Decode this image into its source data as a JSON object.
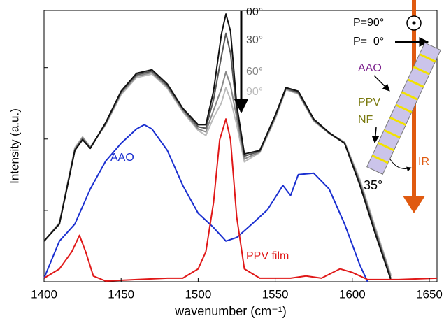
{
  "chart_data": {
    "type": "line",
    "ylabel": "Intensity (a.u.)",
    "xlabel": "wavenumber (cm⁻¹)",
    "xlim": [
      1400,
      1655
    ],
    "xticks": [
      1400,
      1450,
      1500,
      1550,
      1600,
      1650
    ],
    "ylim": [
      0,
      3.8
    ],
    "yticks": [
      1,
      2,
      3
    ],
    "series": [
      {
        "name": "00°",
        "color": "#111111",
        "x": [
          1400,
          1410,
          1420,
          1425,
          1430,
          1440,
          1450,
          1460,
          1470,
          1480,
          1490,
          1500,
          1505,
          1510,
          1515,
          1518,
          1521,
          1525,
          1530,
          1540,
          1550,
          1557,
          1565,
          1575,
          1585,
          1595,
          1605,
          1615,
          1625
        ],
        "values": [
          0.57,
          0.81,
          1.84,
          1.99,
          1.87,
          2.23,
          2.67,
          2.92,
          2.97,
          2.77,
          2.43,
          2.2,
          2.2,
          2.67,
          3.46,
          3.75,
          3.51,
          2.48,
          1.79,
          1.84,
          2.33,
          2.72,
          2.67,
          2.28,
          2.09,
          1.94,
          1.35,
          0.67,
          0.03
        ]
      },
      {
        "name": "30°",
        "color": "#555555",
        "x": [
          1400,
          1410,
          1420,
          1425,
          1430,
          1440,
          1450,
          1460,
          1470,
          1480,
          1490,
          1500,
          1505,
          1510,
          1515,
          1518,
          1521,
          1525,
          1530,
          1540,
          1550,
          1557,
          1565,
          1575,
          1585,
          1595,
          1605,
          1615,
          1625
        ],
        "values": [
          0.57,
          0.81,
          1.85,
          2.0,
          1.87,
          2.22,
          2.66,
          2.9,
          2.95,
          2.75,
          2.42,
          2.17,
          2.15,
          2.55,
          3.15,
          3.48,
          3.2,
          2.4,
          1.76,
          1.83,
          2.32,
          2.71,
          2.65,
          2.27,
          2.08,
          1.94,
          1.37,
          0.7,
          0.05
        ]
      },
      {
        "name": "60°",
        "color": "#888888",
        "x": [
          1400,
          1410,
          1420,
          1425,
          1430,
          1440,
          1450,
          1460,
          1470,
          1480,
          1490,
          1500,
          1505,
          1510,
          1515,
          1518,
          1521,
          1525,
          1530,
          1540,
          1550,
          1557,
          1565,
          1575,
          1585,
          1595,
          1605,
          1615,
          1625
        ],
        "values": [
          0.57,
          0.82,
          1.86,
          2.02,
          1.88,
          2.21,
          2.64,
          2.88,
          2.93,
          2.73,
          2.4,
          2.14,
          2.1,
          2.4,
          2.7,
          2.94,
          2.75,
          2.3,
          1.72,
          1.82,
          2.3,
          2.7,
          2.64,
          2.26,
          2.08,
          1.95,
          1.4,
          0.73,
          0.08
        ]
      },
      {
        "name": "90°",
        "color": "#bbbbbb",
        "x": [
          1400,
          1410,
          1420,
          1425,
          1430,
          1440,
          1450,
          1460,
          1470,
          1480,
          1490,
          1500,
          1505,
          1510,
          1515,
          1518,
          1521,
          1525,
          1530,
          1540,
          1550,
          1557,
          1565,
          1575,
          1585,
          1595,
          1605,
          1615,
          1625
        ],
        "values": [
          0.57,
          0.83,
          1.88,
          2.03,
          1.89,
          2.2,
          2.62,
          2.86,
          2.91,
          2.71,
          2.38,
          2.12,
          2.05,
          2.3,
          2.5,
          2.72,
          2.55,
          2.2,
          1.68,
          1.81,
          2.28,
          2.69,
          2.63,
          2.25,
          2.08,
          1.96,
          1.43,
          0.76,
          0.1
        ]
      },
      {
        "name": "AAO",
        "color": "#1a2fd0",
        "x": [
          1400,
          1410,
          1420,
          1430,
          1440,
          1450,
          1460,
          1465,
          1470,
          1480,
          1490,
          1500,
          1510,
          1518,
          1525,
          1535,
          1545,
          1555,
          1560,
          1565,
          1575,
          1585,
          1595,
          1605,
          1610
        ],
        "values": [
          0.05,
          0.57,
          0.81,
          1.3,
          1.69,
          1.94,
          2.14,
          2.2,
          2.14,
          1.84,
          1.35,
          0.96,
          0.76,
          0.57,
          0.62,
          0.81,
          1.01,
          1.35,
          1.21,
          1.5,
          1.52,
          1.3,
          0.81,
          0.23,
          0
        ]
      },
      {
        "name": "PPV film",
        "color": "#e01818",
        "x": [
          1400,
          1410,
          1418,
          1423,
          1427,
          1432,
          1440,
          1460,
          1480,
          1490,
          1500,
          1505,
          1510,
          1514,
          1518,
          1521,
          1525,
          1530,
          1540,
          1560,
          1570,
          1580,
          1592,
          1600,
          1610,
          1630,
          1655
        ],
        "values": [
          0.05,
          0.18,
          0.42,
          0.65,
          0.42,
          0.08,
          0.01,
          0.03,
          0.05,
          0.05,
          0.18,
          0.42,
          1.11,
          1.99,
          2.28,
          1.99,
          0.91,
          0.18,
          0.05,
          0.05,
          0.08,
          0.05,
          0.18,
          0.13,
          0.03,
          0.03,
          0.05
        ]
      }
    ],
    "inset": {
      "p90": "P=90°",
      "p0": "P=  0°",
      "aao": "AAO",
      "ppv": "PPV",
      "nf": "NF",
      "ir": "IR",
      "angle": "35°"
    }
  }
}
